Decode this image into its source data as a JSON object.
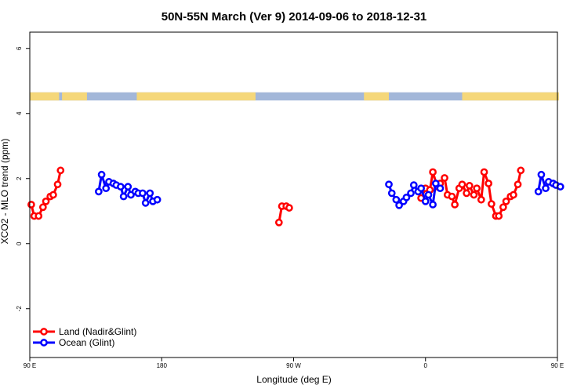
{
  "chart_data": {
    "type": "line",
    "title": "50N-55N March (Ver 9)   2014-09-06 to 2018-12-31",
    "xlabel": "Longitude (deg E)",
    "ylabel": "XCO2 - MLO trend (ppm)",
    "xlim": [
      90,
      450
    ],
    "ylim": [
      -3.5,
      6.5
    ],
    "x_ticks": [
      {
        "value": 90,
        "label": "90 E"
      },
      {
        "value": 180,
        "label": "180"
      },
      {
        "value": 270,
        "label": "90 W"
      },
      {
        "value": 360,
        "label": "0"
      },
      {
        "value": 450,
        "label": "90 E"
      },
      {
        "value": 540,
        "label": "180"
      }
    ],
    "y_ticks": [
      {
        "value": -2,
        "label": "-2"
      },
      {
        "value": 0,
        "label": "0"
      },
      {
        "value": 2,
        "label": "2"
      },
      {
        "value": 4,
        "label": "4"
      },
      {
        "value": 6,
        "label": "6"
      }
    ],
    "grid": false,
    "legend_position": "bottom-left",
    "land_ocean_strip": {
      "y_range": [
        4.4,
        4.65
      ],
      "land_color": "#F5D77A",
      "ocean_color": "#A3B7D9"
    },
    "series": [
      {
        "name": "Land (Nadir&Glint)",
        "color": "#FF0000",
        "segments": [
          [
            [
              91,
              1.2
            ],
            [
              93,
              0.85
            ],
            [
              96,
              0.85
            ],
            [
              99,
              1.12
            ],
            [
              101,
              1.3
            ],
            [
              104,
              1.45
            ],
            [
              106,
              1.5
            ],
            [
              109,
              1.82
            ],
            [
              111,
              2.25
            ]
          ],
          [
            [
              260,
              0.65
            ],
            [
              262,
              1.15
            ],
            [
              265,
              1.15
            ],
            [
              267,
              1.1
            ]
          ],
          [
            [
              357,
              1.4
            ],
            [
              360,
              1.7
            ],
            [
              363,
              1.65
            ],
            [
              365,
              2.2
            ],
            [
              368,
              1.75
            ],
            [
              370,
              1.85
            ],
            [
              373,
              2.02
            ],
            [
              375,
              1.5
            ],
            [
              378,
              1.45
            ],
            [
              380,
              1.2
            ],
            [
              383,
              1.7
            ],
            [
              385,
              1.82
            ],
            [
              388,
              1.55
            ],
            [
              390,
              1.78
            ],
            [
              393,
              1.5
            ],
            [
              395,
              1.7
            ],
            [
              398,
              1.35
            ],
            [
              400,
              2.2
            ],
            [
              403,
              1.85
            ],
            [
              405,
              1.22
            ],
            [
              408,
              0.85
            ],
            [
              410,
              0.85
            ],
            [
              413,
              1.12
            ],
            [
              415,
              1.3
            ],
            [
              418,
              1.45
            ],
            [
              420,
              1.5
            ],
            [
              423,
              1.82
            ],
            [
              425,
              2.25
            ]
          ]
        ]
      },
      {
        "name": "Ocean (Glint)",
        "color": "#0000FF",
        "segments": [
          [
            [
              137,
              1.6
            ],
            [
              139,
              2.12
            ],
            [
              142,
              1.7
            ],
            [
              144,
              1.9
            ],
            [
              147,
              1.85
            ],
            [
              149,
              1.8
            ],
            [
              152,
              1.75
            ],
            [
              154,
              1.45
            ],
            [
              157,
              1.75
            ],
            [
              159,
              1.5
            ],
            [
              162,
              1.6
            ],
            [
              164,
              1.55
            ],
            [
              167,
              1.55
            ],
            [
              169,
              1.25
            ],
            [
              172,
              1.55
            ],
            [
              174,
              1.3
            ],
            [
              177,
              1.35
            ]
          ],
          [
            [
              335,
              1.82
            ],
            [
              337,
              1.55
            ],
            [
              340,
              1.35
            ],
            [
              342,
              1.18
            ],
            [
              345,
              1.3
            ],
            [
              347,
              1.42
            ],
            [
              350,
              1.55
            ],
            [
              352,
              1.8
            ],
            [
              355,
              1.6
            ],
            [
              357,
              1.7
            ],
            [
              360,
              1.3
            ],
            [
              362,
              1.5
            ],
            [
              365,
              1.2
            ],
            [
              367,
              1.85
            ],
            [
              370,
              1.7
            ]
          ],
          [
            [
              437,
              1.6
            ],
            [
              439,
              2.12
            ],
            [
              442,
              1.7
            ],
            [
              444,
              1.9
            ],
            [
              447,
              1.85
            ],
            [
              449,
              1.8
            ],
            [
              452,
              1.75
            ]
          ]
        ]
      }
    ]
  }
}
